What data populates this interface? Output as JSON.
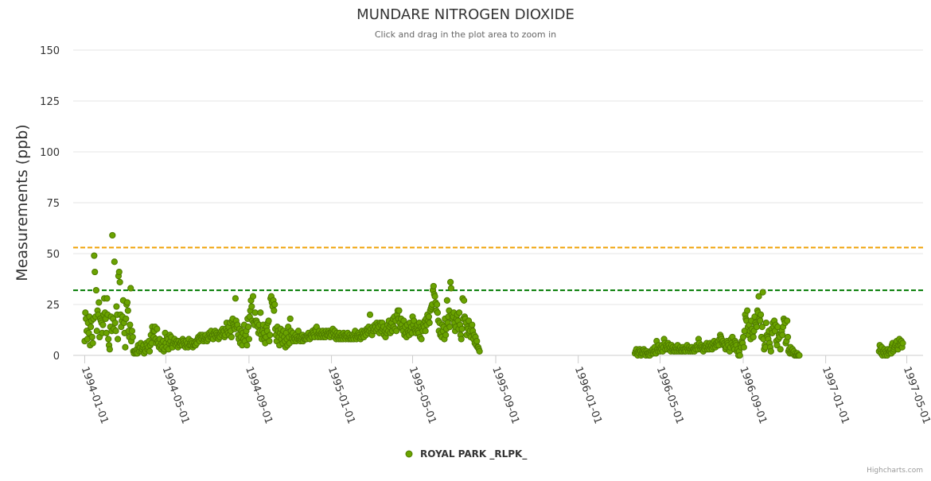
{
  "chart_data": {
    "type": "scatter",
    "title": "MUNDARE NITROGEN DIOXIDE",
    "subtitle": "Click and drag in the plot area to zoom in",
    "ylabel": "Measurements (ppb)",
    "xlabel": "",
    "ylim": [
      0,
      150
    ],
    "yticks": [
      "0",
      "25",
      "50",
      "75",
      "100",
      "125",
      "150"
    ],
    "xlim": [
      "1993-12-15",
      "1997-05-25"
    ],
    "xticks": [
      "1994-01-01",
      "1994-05-01",
      "1994-09-01",
      "1995-01-01",
      "1995-05-01",
      "1995-09-01",
      "1996-01-01",
      "1996-05-01",
      "1996-09-01",
      "1997-01-01",
      "1997-05-01"
    ],
    "thresholds": [
      {
        "value": 53,
        "color": "#f0a30a",
        "style": "dashed"
      },
      {
        "value": 32,
        "color": "#007a00",
        "style": "dashed"
      }
    ],
    "legend": {
      "position": "bottom-center"
    },
    "series": [
      {
        "name": "ROYAL PARK _RLPK_",
        "color": "#6aa300",
        "stroke": "#4e7a00",
        "segments": [
          {
            "start": "1994-01-01",
            "values": [
              7,
              21,
              18,
              12,
              8,
              16,
              11,
              19,
              5,
              14,
              17,
              9,
              6,
              18,
              49,
              41,
              19,
              32,
              12,
              22,
              20,
              26,
              9,
              18,
              17,
              16,
              11,
              15,
              20,
              28,
              21,
              18,
              11,
              28,
              20,
              8,
              5,
              3,
              14,
              19,
              12,
              59,
              18,
              13,
              46,
              16,
              12,
              24,
              20,
              8,
              39,
              41,
              36,
              20,
              14,
              17,
              19,
              27,
              16,
              11,
              4,
              18,
              25,
              26,
              22,
              12,
              9,
              15,
              33,
              7,
              12,
              9,
              2
            ]
          },
          {
            "start": "1994-03-15",
            "values": [
              1,
              2,
              2,
              1,
              3,
              1,
              5,
              3,
              2,
              4,
              6,
              2,
              3,
              4,
              5,
              1,
              3,
              2,
              6,
              5,
              3,
              4,
              7,
              2,
              5,
              10,
              6,
              14,
              12,
              9,
              12,
              14,
              8,
              6,
              13,
              7,
              6,
              4,
              8,
              5,
              3,
              6,
              4,
              7,
              2,
              3,
              11,
              6,
              4,
              9,
              8,
              3,
              6,
              10,
              7,
              9,
              5,
              4,
              6,
              7,
              8,
              6,
              5,
              7,
              6,
              4,
              7,
              5,
              6,
              6,
              7,
              5,
              8,
              7,
              6,
              5,
              4,
              7,
              5,
              6,
              4,
              8,
              5,
              6,
              5,
              7,
              6,
              4,
              5,
              6,
              5,
              5,
              7,
              6,
              8,
              9,
              8,
              7,
              10,
              9,
              8,
              10,
              9,
              7,
              8,
              9,
              10,
              8,
              7,
              9,
              8,
              11,
              10,
              9,
              12,
              9,
              10,
              8,
              11,
              10,
              12,
              9,
              11,
              10,
              9,
              8,
              10,
              9,
              11,
              12,
              10,
              13,
              11,
              12,
              9,
              10,
              13,
              16,
              12,
              11,
              14,
              10,
              16,
              12,
              9,
              17,
              18,
              15,
              14,
              13,
              28,
              17,
              14,
              15,
              10,
              8,
              13,
              6,
              9,
              12,
              5,
              11,
              8,
              15,
              7,
              10,
              12,
              5,
              18,
              14,
              8,
              19,
              22,
              27,
              24,
              17,
              29,
              16,
              15,
              21,
              17,
              17,
              16,
              14,
              11,
              15,
              12,
              21,
              10,
              8,
              12,
              15,
              11,
              8,
              6,
              9,
              14,
              12,
              16,
              17,
              7,
              10,
              28,
              29,
              26,
              24,
              27,
              22,
              25,
              13,
              10,
              7,
              14,
              12,
              9,
              5,
              11,
              13,
              8,
              10,
              6,
              12,
              9,
              7,
              4,
              11,
              8,
              5,
              14,
              9,
              6,
              18,
              12,
              10,
              8,
              11,
              7,
              9,
              8,
              10,
              7,
              9,
              8,
              12,
              8,
              9,
              7,
              8,
              9,
              10,
              7,
              9,
              8,
              8,
              9,
              8,
              10,
              9,
              11,
              9,
              8,
              10,
              10,
              9,
              12,
              11,
              10,
              9,
              13,
              12,
              14,
              10,
              9,
              11,
              12,
              10,
              9,
              11,
              10,
              12,
              9,
              11,
              10,
              9,
              12,
              10,
              11,
              10,
              12,
              11,
              9,
              11,
              10,
              12,
              13,
              11,
              9,
              12,
              10,
              8,
              11,
              9,
              10,
              8,
              11,
              9,
              8,
              10,
              9,
              8,
              11,
              9,
              10,
              8,
              10,
              9,
              11,
              8,
              9,
              10,
              8,
              9,
              8,
              10,
              9,
              8,
              11,
              12,
              9,
              8,
              10,
              9,
              11,
              10,
              9,
              8,
              9,
              12,
              10,
              11,
              9,
              12,
              11,
              10,
              13,
              12,
              11,
              14,
              12,
              20,
              13,
              11,
              10,
              14,
              12,
              13,
              15,
              14,
              12,
              16,
              13,
              15,
              14,
              11,
              16,
              15,
              12,
              16,
              13,
              14,
              10,
              12,
              9,
              13,
              11,
              15,
              12,
              17,
              14,
              11,
              15,
              16,
              12,
              18,
              14,
              19,
              13,
              17,
              12,
              20,
              22,
              18,
              22,
              16,
              14,
              18,
              15,
              13,
              12,
              17,
              10,
              14,
              11,
              9,
              15,
              12,
              11,
              10,
              16,
              12,
              14,
              11,
              19,
              15,
              17,
              13,
              12,
              11,
              14,
              15,
              12,
              11,
              16,
              9,
              14,
              8,
              13,
              12,
              15,
              14,
              17,
              12,
              18,
              15,
              20,
              17,
              19,
              16,
              22,
              23,
              24,
              25,
              32,
              34,
              30,
              29,
              26,
              22,
              25,
              21,
              17,
              12,
              16,
              10,
              11,
              9,
              15,
              12,
              14,
              8,
              18,
              10,
              13,
              27,
              16,
              19,
              22,
              14,
              36,
              33,
              20,
              18,
              19,
              21,
              16,
              12,
              14,
              18,
              20,
              17,
              13,
              21,
              15,
              10,
              8,
              13,
              28,
              18,
              27,
              19,
              18,
              16,
              10,
              14,
              13,
              17,
              11,
              12,
              9,
              14,
              15,
              12,
              8,
              10,
              6,
              9,
              5,
              7,
              4,
              4,
              3,
              2
            ]
          },
          {
            "start": "1996-03-25",
            "values": [
              1,
              2,
              3,
              1,
              0,
              2,
              1,
              3,
              2,
              0,
              1,
              2,
              1,
              3,
              2,
              1,
              0,
              2,
              1,
              1,
              0,
              1,
              0,
              2,
              1,
              2,
              3,
              1,
              2,
              4,
              2,
              1,
              7,
              3,
              2,
              5,
              3,
              2,
              4,
              3,
              5,
              2,
              4,
              8,
              6,
              3,
              5,
              4,
              3,
              6,
              5,
              3,
              4,
              2,
              5,
              3,
              4,
              2,
              3,
              2,
              4,
              3,
              2,
              5,
              3,
              2,
              3,
              4,
              2,
              3,
              2,
              4,
              3,
              2,
              3,
              2,
              4,
              5,
              3,
              2,
              4,
              3,
              2,
              3,
              4,
              2,
              3,
              3,
              2,
              4,
              3,
              5,
              4,
              3,
              8,
              6,
              4,
              3,
              5,
              4,
              3,
              2,
              4,
              3,
              5,
              4,
              6,
              3,
              4,
              5,
              3,
              6,
              4,
              5,
              3,
              6,
              4,
              7,
              5,
              4,
              6,
              5,
              6,
              7,
              5,
              8,
              10,
              9,
              8,
              6,
              7,
              5,
              6,
              5,
              3,
              4,
              7,
              6,
              5,
              3,
              2,
              4,
              8,
              6,
              9,
              5,
              4,
              3,
              7,
              6,
              5,
              2,
              3,
              0,
              2,
              0,
              5,
              4,
              7,
              6,
              9,
              4,
              12,
              20,
              18,
              17,
              22,
              14,
              10,
              15,
              12,
              8,
              17,
              13,
              11,
              9,
              12,
              19,
              16,
              15,
              14,
              22,
              21,
              29,
              18,
              17,
              20,
              9,
              14,
              31,
              8,
              3,
              5,
              4,
              16,
              10,
              9,
              8,
              12,
              6,
              4,
              2,
              13,
              11,
              16,
              14,
              17,
              12,
              15,
              7,
              5,
              14,
              8,
              10,
              9,
              3,
              11,
              12,
              10,
              14,
              18,
              17,
              16,
              6,
              7,
              17,
              9,
              2,
              3,
              1,
              4,
              2,
              1,
              3,
              1,
              2,
              0,
              1,
              0,
              0,
              1,
              0,
              0,
              0
            ]
          },
          {
            "start": "1997-03-21",
            "values": [
              2,
              5,
              3,
              1,
              4,
              0,
              2,
              1,
              3,
              0,
              2,
              1,
              0,
              3,
              1,
              2,
              2,
              3,
              1,
              5,
              6,
              2,
              3,
              4,
              5,
              6,
              7,
              4,
              3,
              5,
              8,
              6,
              5,
              7,
              4,
              6
            ]
          }
        ]
      }
    ]
  }
}
